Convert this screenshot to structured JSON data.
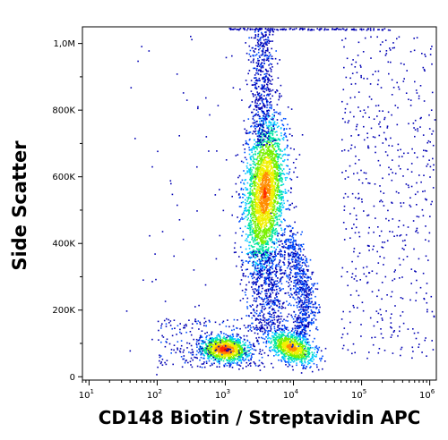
{
  "chart_data": {
    "type": "scatter",
    "title": "",
    "xlabel": "CD148 Biotin / Streptavidin APC",
    "ylabel": "Side Scatter",
    "x_scale": "log",
    "x_ticks": [
      {
        "value": 10,
        "label": "10",
        "exp": "1"
      },
      {
        "value": 100,
        "label": "10",
        "exp": "2"
      },
      {
        "value": 1000,
        "label": "10",
        "exp": "3"
      },
      {
        "value": 10000,
        "label": "10",
        "exp": "4"
      },
      {
        "value": 100000,
        "label": "10",
        "exp": "5"
      },
      {
        "value": 1000000,
        "label": "10",
        "exp": "6"
      }
    ],
    "y_ticks": [
      {
        "value": 0,
        "label": "0"
      },
      {
        "value": 200000,
        "label": "200K"
      },
      {
        "value": 400000,
        "label": "400K"
      },
      {
        "value": 600000,
        "label": "600K"
      },
      {
        "value": 800000,
        "label": "800K"
      },
      {
        "value": 1000000,
        "label": "1,0M"
      }
    ],
    "xlim": [
      8,
      1250000
    ],
    "ylim": [
      -10000,
      1050000
    ],
    "grid": false,
    "legend": "none",
    "colormap": [
      "#0000b4",
      "#0050ff",
      "#00c8ff",
      "#00e6a0",
      "#78f000",
      "#f0f000",
      "#ff8c00",
      "#ff2800",
      "#c80000"
    ],
    "populations": [
      {
        "x_center": 3500,
        "y_center": 530000,
        "weight": 0.42
      },
      {
        "x_center": 950,
        "y_center": 80000,
        "weight": 0.2
      },
      {
        "x_center": 7500,
        "y_center": 90000,
        "weight": 0.16
      },
      {
        "x_center": 20000,
        "y_center": 250000,
        "weight": 0.08
      },
      {
        "x_center": 4000,
        "y_center": 900000,
        "weight": 0.08
      },
      {
        "x_center": 300000,
        "y_center": 450000,
        "weight": 0.06
      }
    ]
  }
}
